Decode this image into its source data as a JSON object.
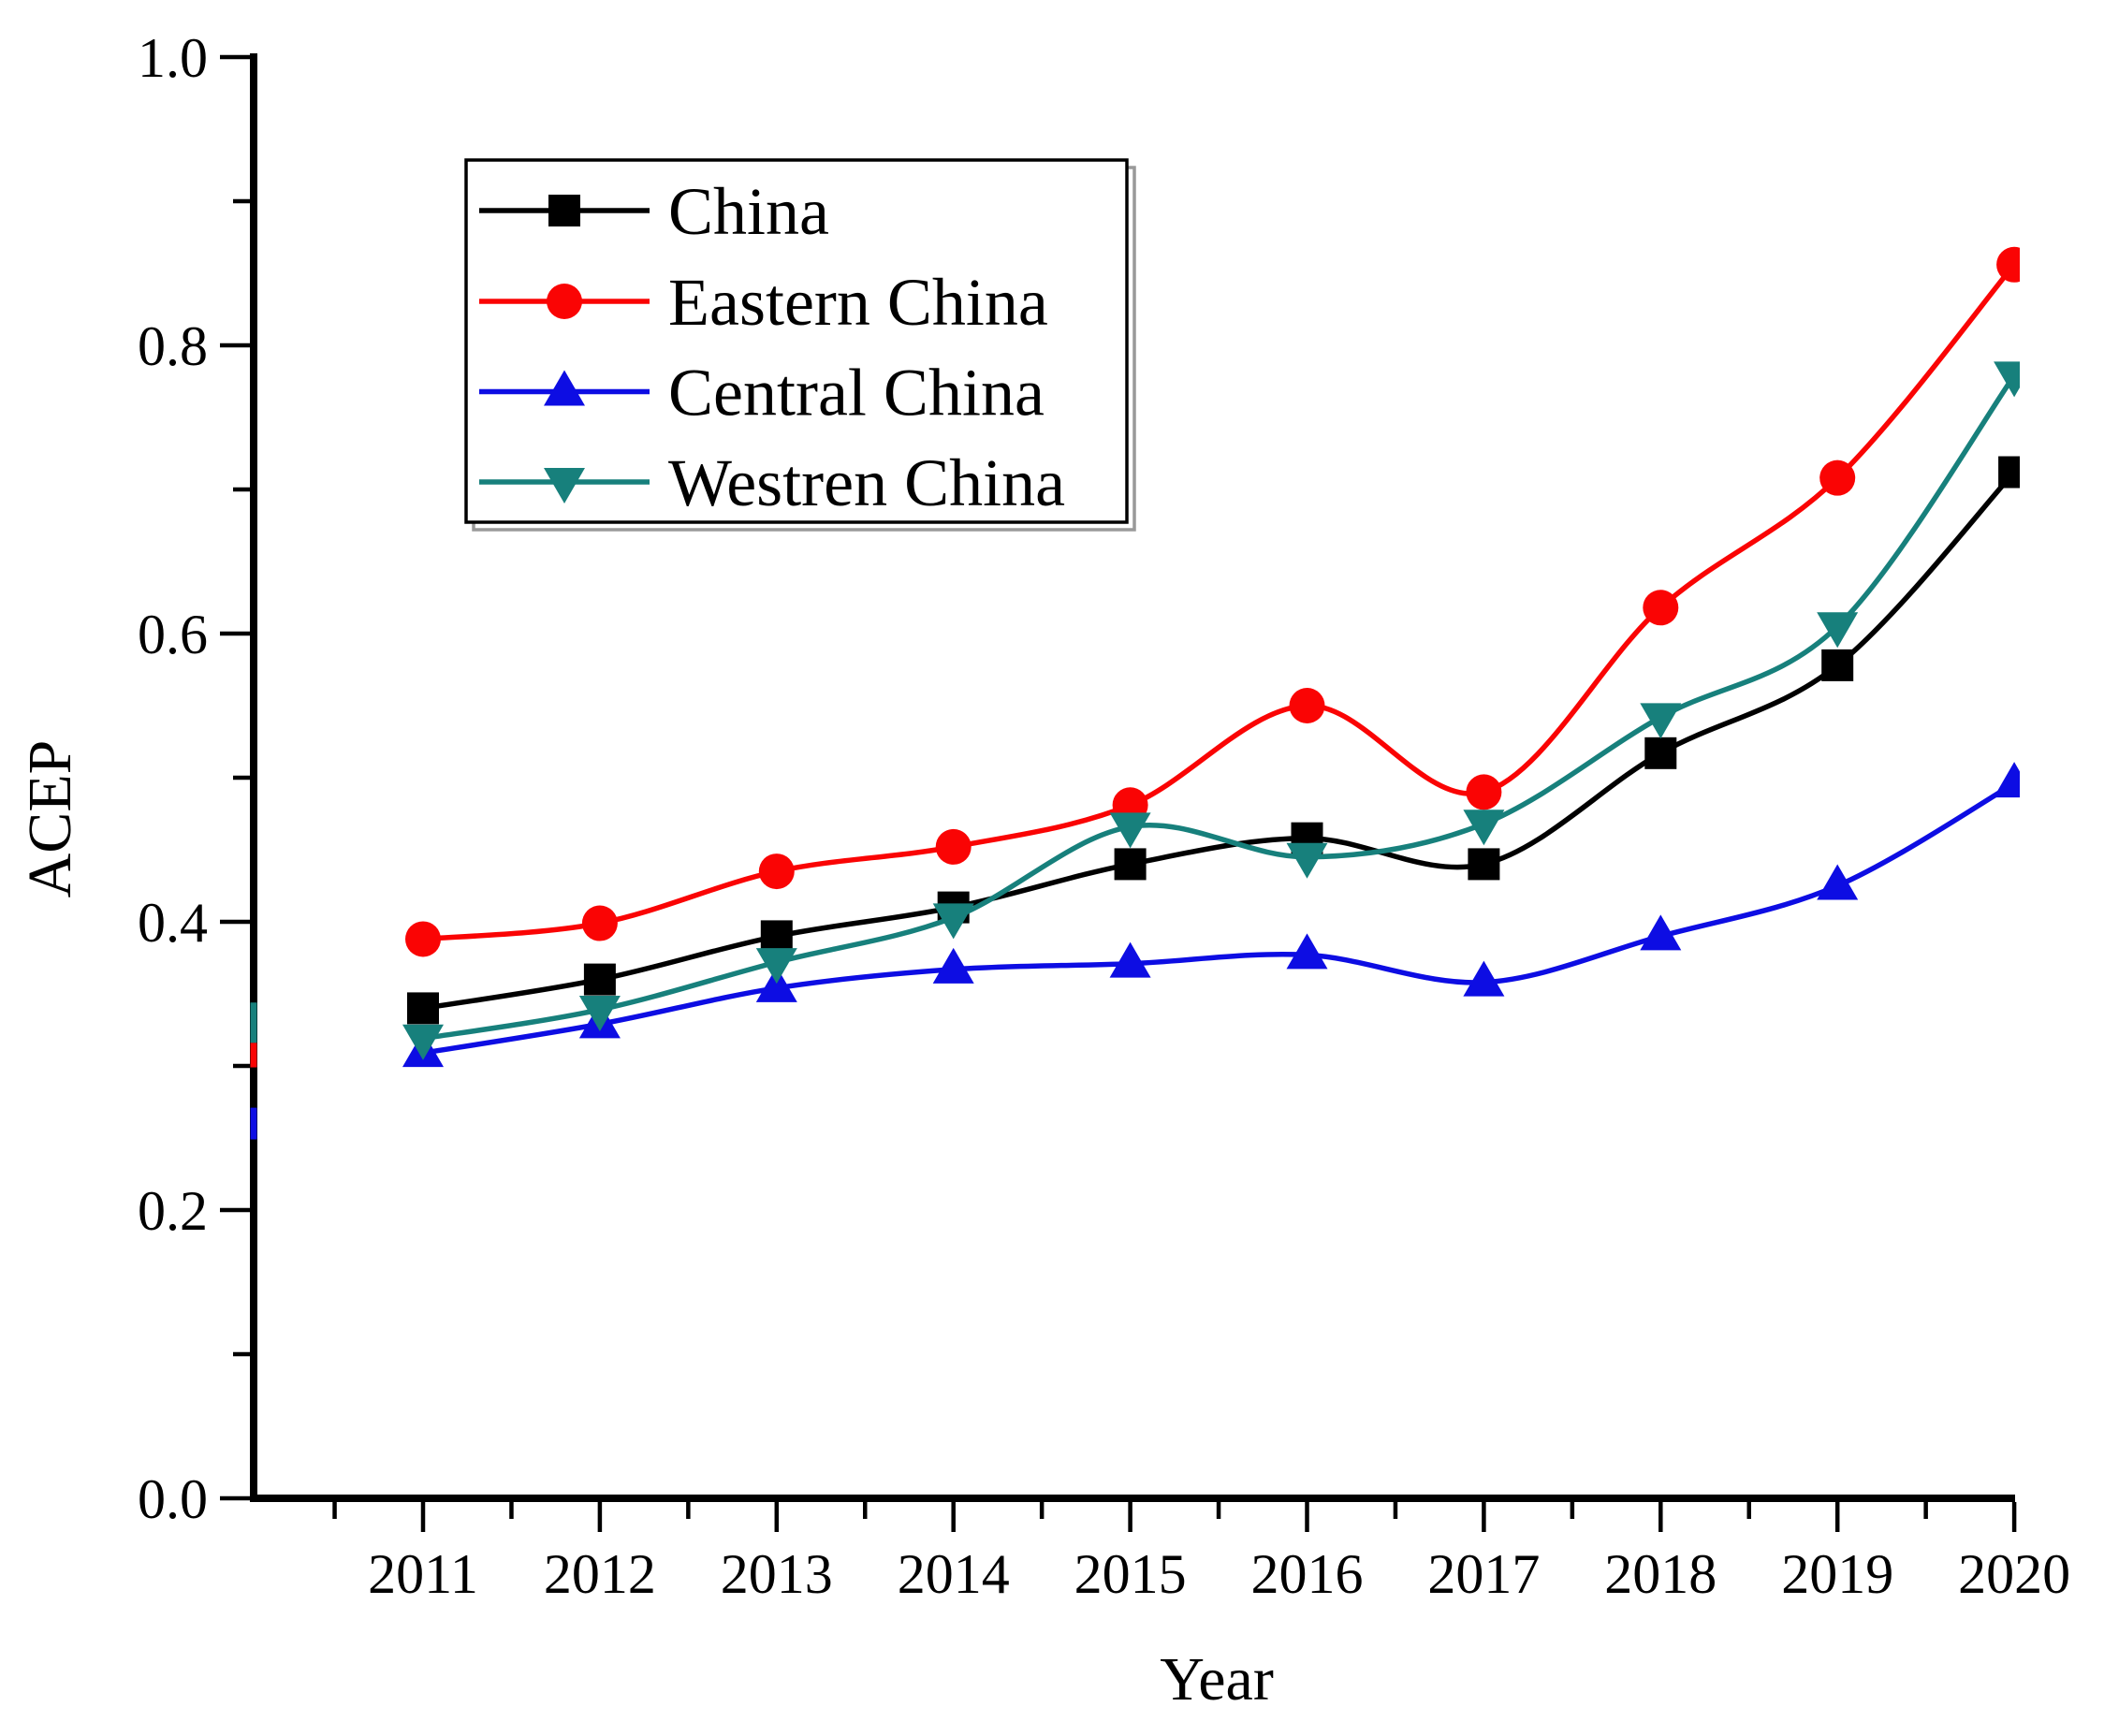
{
  "page": {
    "background": "#ffffff"
  },
  "chart_data": {
    "type": "line",
    "title": "",
    "xlabel": "Year",
    "ylabel": "ACEP",
    "x": [
      2011,
      2012,
      2013,
      2014,
      2015,
      2016,
      2017,
      2018,
      2019,
      2020
    ],
    "x_tick_labels": [
      "2011",
      "2012",
      "2013",
      "2014",
      "2015",
      "2016",
      "2017",
      "2018",
      "2019",
      "2020"
    ],
    "x_minor_ticks": [
      2010.5,
      2011.5,
      2012.5,
      2013.5,
      2014.5,
      2015.5,
      2016.5,
      2017.5,
      2018.5,
      2019.5
    ],
    "xlim": [
      2010.04,
      2020.03
    ],
    "ylim": [
      0.0,
      1.0
    ],
    "y_major_ticks": [
      0.0,
      0.2,
      0.4,
      0.6,
      0.8,
      1.0
    ],
    "y_tick_labels": [
      "0.0",
      "0.2",
      "0.4",
      "0.6",
      "0.8",
      "1.0"
    ],
    "y_minor_ticks": [
      0.1,
      0.3,
      0.5,
      0.7,
      0.9
    ],
    "grid": false,
    "legend_position": "upper-left-inside",
    "series": [
      {
        "name": "China",
        "color": "#000000",
        "marker": "square",
        "values": [
          0.34,
          0.36,
          0.39,
          0.41,
          0.44,
          0.458,
          0.44,
          0.517,
          0.578,
          0.712
        ]
      },
      {
        "name": "Eastern China",
        "color": "#fa0404",
        "marker": "circle",
        "values": [
          0.388,
          0.399,
          0.435,
          0.452,
          0.481,
          0.55,
          0.49,
          0.618,
          0.708,
          0.856
        ]
      },
      {
        "name": "Central China",
        "color": "#0d0de3",
        "marker": "triangle-up",
        "values": [
          0.309,
          0.329,
          0.354,
          0.367,
          0.371,
          0.377,
          0.358,
          0.39,
          0.425,
          0.496
        ]
      },
      {
        "name": "Westren China",
        "color": "#17807c",
        "marker": "triangle-down",
        "values": [
          0.319,
          0.339,
          0.372,
          0.403,
          0.466,
          0.445,
          0.468,
          0.542,
          0.605,
          0.779
        ]
      }
    ],
    "left_edge_artifacts": [
      {
        "color": "#17807c",
        "v_from": 0.344,
        "v_to": 0.316
      },
      {
        "color": "#fa0404",
        "v_from": 0.316,
        "v_to": 0.299
      },
      {
        "color": "#0d0de3",
        "v_from": 0.271,
        "v_to": 0.249
      }
    ]
  }
}
